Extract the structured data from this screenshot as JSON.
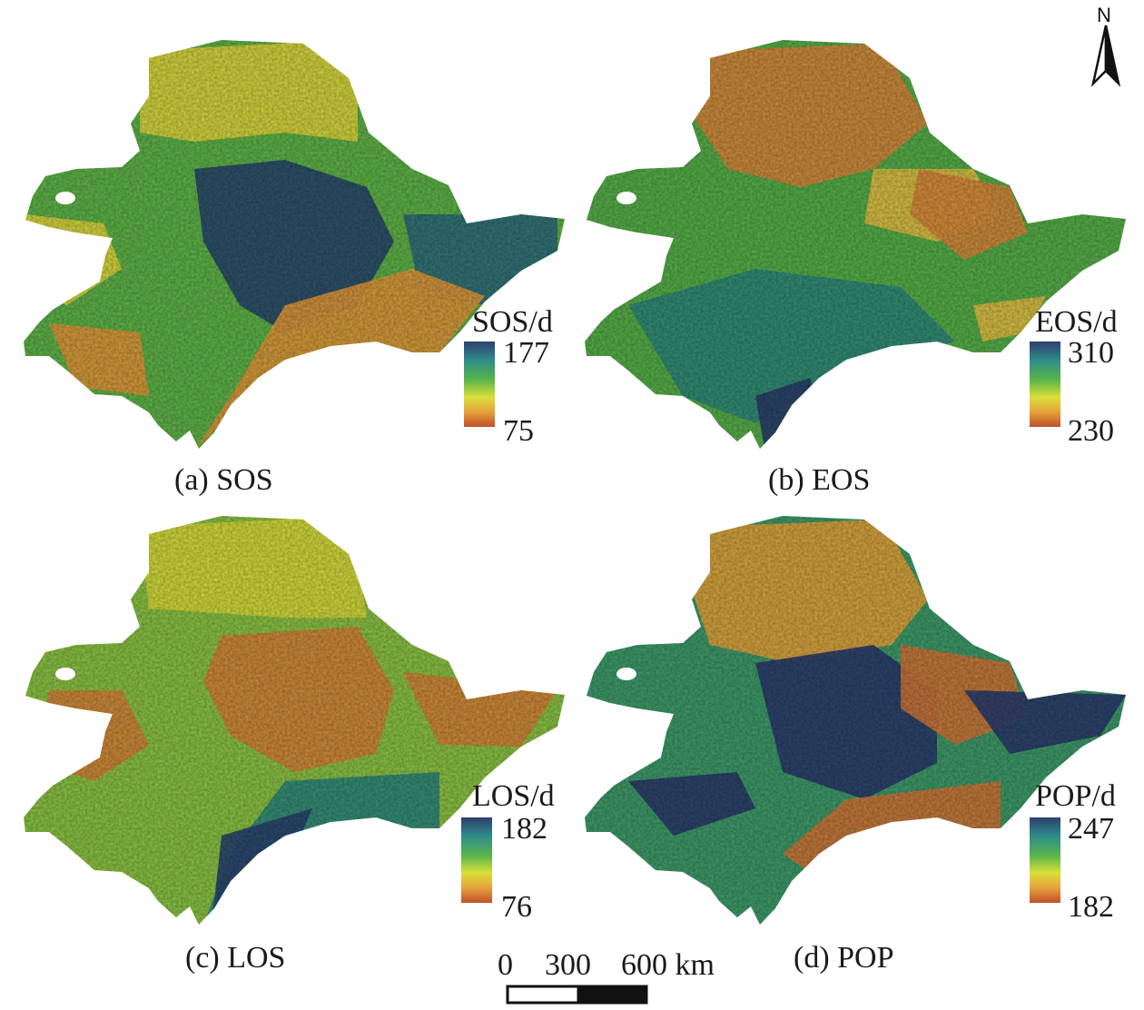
{
  "panels": [
    {
      "id": "sos",
      "caption": "(a) SOS",
      "legend": {
        "title": "SOS/d",
        "max": "177",
        "min": "75"
      },
      "palette": {
        "dominant": "#5fb548",
        "secondary": "#e0d93e",
        "warm": "#e29a3b",
        "cool": "#2f6f7d",
        "deep": "#2a4a6e"
      }
    },
    {
      "id": "eos",
      "caption": "(b) EOS",
      "legend": {
        "title": "EOS/d",
        "max": "310",
        "min": "230"
      },
      "palette": {
        "dominant": "#57b04a",
        "secondary": "#e3c144",
        "warm": "#d98a3c",
        "cool": "#2f8b7a",
        "deep": "#2a3f6b"
      }
    },
    {
      "id": "los",
      "caption": "(c) LOS",
      "legend": {
        "title": "LOS/d",
        "max": "182",
        "min": "76"
      },
      "palette": {
        "dominant": "#8cc444",
        "secondary": "#d9dc3c",
        "warm": "#d7853a",
        "cool": "#2f8a7c",
        "deep": "#2a4470"
      }
    },
    {
      "id": "pop",
      "caption": "(d) POP",
      "legend": {
        "title": "POP/d",
        "max": "247",
        "min": "182"
      },
      "palette": {
        "dominant": "#3f9c6a",
        "secondary": "#e4a63c",
        "warm": "#d1783a",
        "cool": "#2e7a82",
        "deep": "#2a3d6e"
      }
    }
  ],
  "north_arrow": {
    "label": "N"
  },
  "scale_bar": {
    "ticks": [
      "0",
      "300",
      "600 km"
    ]
  }
}
